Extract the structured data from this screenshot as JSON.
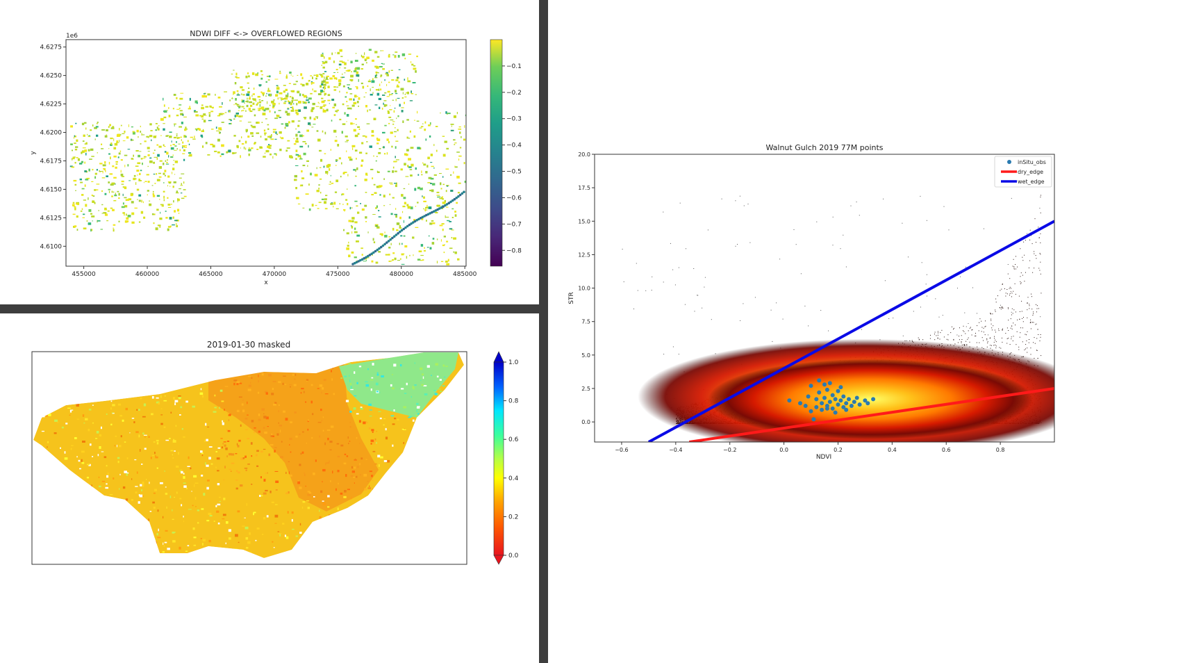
{
  "colors": {
    "divider": "#3e3e3e",
    "dry_edge": "#ff1a1a",
    "wet_edge": "#0a0ae6",
    "insitu_points": "#2a7ab0"
  },
  "chart_data": [
    {
      "type": "heatmap",
      "title": "NDWI DIFF <-> OVERFLOWED REGIONS",
      "xlabel": "x",
      "ylabel": "y",
      "y_offset_label": "1e6",
      "x_ticks": [
        455000,
        460000,
        465000,
        470000,
        475000,
        480000,
        485000
      ],
      "x_tick_labels": [
        "455000",
        "460000",
        "465000",
        "470000",
        "475000",
        "480000",
        "485000"
      ],
      "y_ticks": [
        4.6275,
        4.625,
        4.6225,
        4.62,
        4.6175,
        4.615,
        4.6125,
        4.61
      ],
      "y_tick_labels": [
        "4.6275",
        "4.6250",
        "4.6225",
        "4.6200",
        "4.6175",
        "4.6150",
        "4.6125",
        "4.6100"
      ],
      "xlim": [
        453600,
        485100
      ],
      "ylim": [
        4.60825,
        4.62815
      ],
      "colormap": "viridis",
      "colorbar_range": [
        -0.86,
        0.0
      ],
      "colorbar_ticks": [
        -0.1,
        -0.2,
        -0.3,
        -0.4,
        -0.5,
        -0.6,
        -0.7,
        -0.8
      ],
      "colorbar_tick_labels": [
        "−0.1",
        "−0.2",
        "−0.3",
        "−0.4",
        "−0.5",
        "−0.6",
        "−0.7",
        "−0.8"
      ]
    },
    {
      "type": "heatmap",
      "title": "2019-01-30 masked",
      "colormap": "jet_r",
      "colorbar_range": [
        0.0,
        1.0
      ],
      "colorbar_ticks": [
        1.0,
        0.8,
        0.6,
        0.4,
        0.2,
        0.0
      ],
      "colorbar_tick_labels": [
        "1.0",
        "0.8",
        "0.6",
        "0.4",
        "0.2",
        "0.0"
      ],
      "colorbar_extend": "both"
    },
    {
      "type": "scatter",
      "title": "Walnut Gulch 2019 77M points",
      "xlabel": "NDVI",
      "ylabel": "STR",
      "xlim": [
        -0.7,
        1.0
      ],
      "ylim": [
        -1.5,
        20.0
      ],
      "x_ticks": [
        -0.6,
        -0.4,
        -0.2,
        0.0,
        0.2,
        0.4,
        0.6,
        0.8
      ],
      "x_tick_labels": [
        "−0.6",
        "−0.4",
        "−0.2",
        "0.0",
        "0.2",
        "0.4",
        "0.6",
        "0.8"
      ],
      "y_ticks": [
        0.0,
        2.5,
        5.0,
        7.5,
        10.0,
        12.5,
        15.0,
        17.5,
        20.0
      ],
      "y_tick_labels": [
        "0.0",
        "2.5",
        "5.0",
        "7.5",
        "10.0",
        "12.5",
        "15.0",
        "17.5",
        "20.0"
      ],
      "legend_position": "top-right",
      "series": [
        {
          "name": "inSitu_obs",
          "kind": "points",
          "x": [
            0.02,
            0.06,
            0.08,
            0.1,
            0.1,
            0.12,
            0.12,
            0.13,
            0.14,
            0.14,
            0.15,
            0.15,
            0.16,
            0.16,
            0.17,
            0.18,
            0.18,
            0.19,
            0.2,
            0.2,
            0.21,
            0.22,
            0.22,
            0.23,
            0.24,
            0.25,
            0.26,
            0.27,
            0.28,
            0.3,
            0.31,
            0.33,
            0.11,
            0.13,
            0.17,
            0.19,
            0.21,
            0.23,
            0.09,
            0.16
          ],
          "y": [
            1.6,
            1.4,
            1.2,
            0.8,
            2.7,
            1.7,
            1.1,
            2.2,
            1.4,
            0.9,
            2.8,
            1.8,
            1.2,
            2.4,
            1.5,
            2.0,
            1.0,
            1.7,
            1.3,
            2.3,
            1.6,
            1.1,
            1.9,
            1.4,
            1.7,
            1.2,
            1.5,
            1.8,
            1.3,
            1.6,
            1.4,
            1.7,
            0.2,
            3.1,
            2.9,
            0.7,
            2.6,
            0.9,
            1.9,
            1.0
          ]
        },
        {
          "name": "dry_edge",
          "kind": "line",
          "x": [
            -0.35,
            1.0
          ],
          "y": [
            -1.5,
            2.5
          ]
        },
        {
          "name": "wet_edge",
          "kind": "line",
          "x": [
            -0.5,
            1.0
          ],
          "y": [
            -1.5,
            15.0
          ]
        }
      ]
    }
  ]
}
